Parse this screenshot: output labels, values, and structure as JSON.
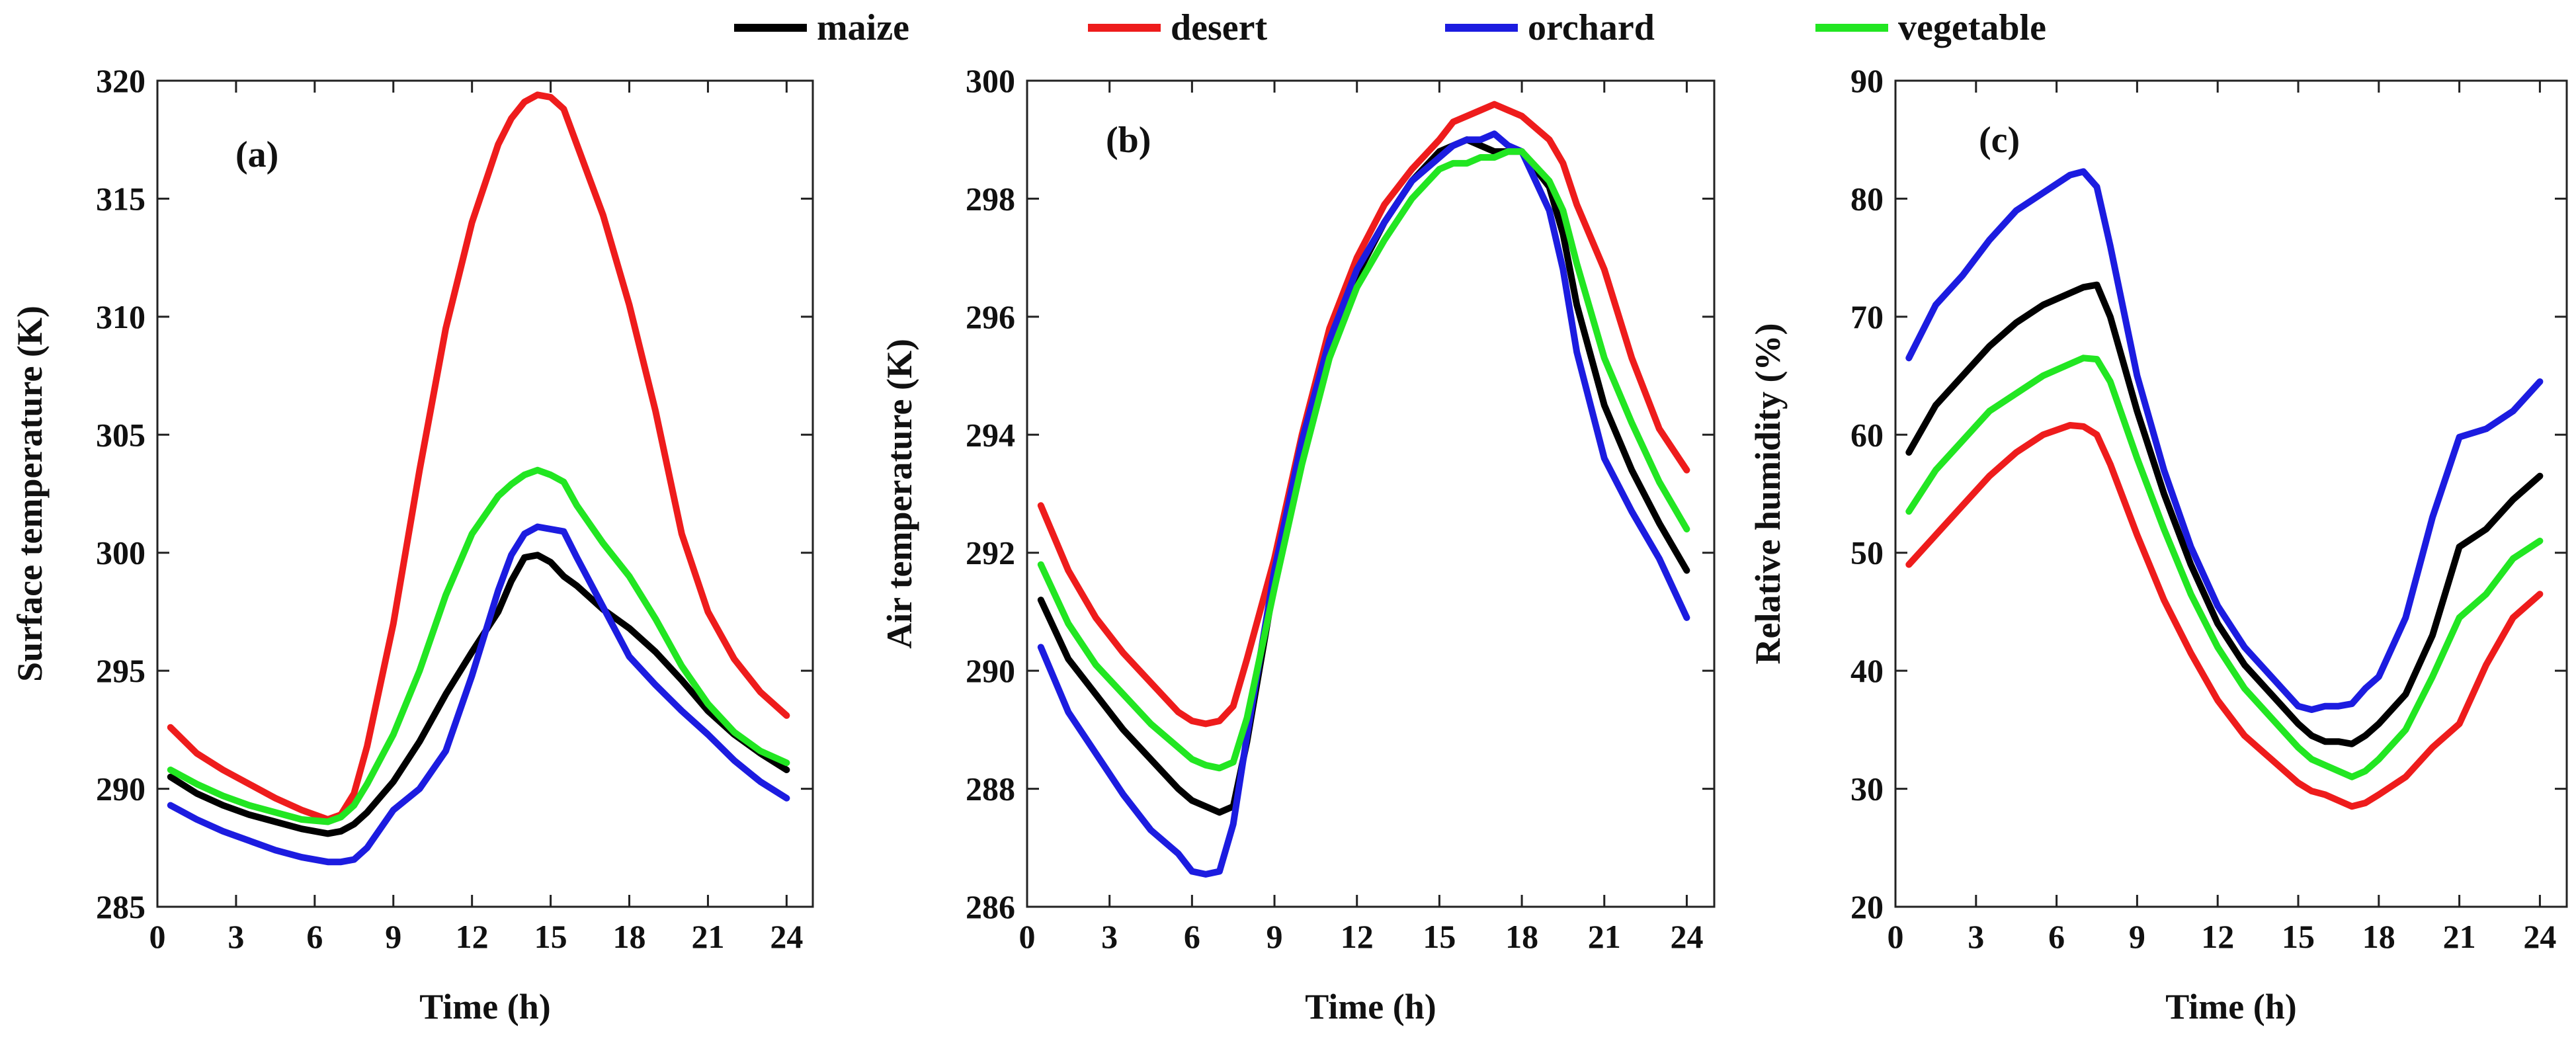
{
  "legend": {
    "entries": [
      {
        "name": "maize",
        "color": "#000000"
      },
      {
        "name": "desert",
        "color": "#ee1c1c"
      },
      {
        "name": "orchard",
        "color": "#1c1ce0"
      },
      {
        "name": "vegetable",
        "color": "#22e622"
      }
    ],
    "placement": "top-center"
  },
  "chart_data": [
    {
      "type": "line",
      "tag": "(a)",
      "xlabel": "Time (h)",
      "ylabel": "Surface temperature (K)",
      "xlim": [
        0,
        25
      ],
      "ylim": [
        285,
        320
      ],
      "xticks": [
        "0",
        "3",
        "6",
        "9",
        "12",
        "15",
        "18",
        "21",
        "24"
      ],
      "yticks": [
        "285",
        "290",
        "295",
        "300",
        "305",
        "310",
        "315",
        "320"
      ],
      "x": [
        0.5,
        1.5,
        2.5,
        3.5,
        4.5,
        5.5,
        6.5,
        7.0,
        7.5,
        8.0,
        9.0,
        10.0,
        11.0,
        12.0,
        13.0,
        13.5,
        14.0,
        14.5,
        15.0,
        15.5,
        16.0,
        17.0,
        18.0,
        19.0,
        20.0,
        21.0,
        22.0,
        23.0,
        24.0
      ],
      "series": [
        {
          "name": "maize",
          "values": [
            290.5,
            289.8,
            289.3,
            288.9,
            288.6,
            288.3,
            288.1,
            288.2,
            288.5,
            289.0,
            290.3,
            292.0,
            294.0,
            295.8,
            297.5,
            298.8,
            299.8,
            299.9,
            299.6,
            299.0,
            298.6,
            297.6,
            296.8,
            295.8,
            294.6,
            293.3,
            292.3,
            291.5,
            290.8
          ]
        },
        {
          "name": "desert",
          "values": [
            292.6,
            291.5,
            290.8,
            290.2,
            289.6,
            289.1,
            288.7,
            288.9,
            289.8,
            291.8,
            297.0,
            303.5,
            309.5,
            314.0,
            317.3,
            318.4,
            319.1,
            319.4,
            319.3,
            318.8,
            317.3,
            314.3,
            310.5,
            306.0,
            300.8,
            297.5,
            295.5,
            294.1,
            293.1
          ]
        },
        {
          "name": "orchard",
          "values": [
            289.3,
            288.7,
            288.2,
            287.8,
            287.4,
            287.1,
            286.9,
            286.9,
            287.0,
            287.5,
            289.1,
            290.0,
            291.6,
            294.8,
            298.4,
            299.9,
            300.8,
            301.1,
            301.0,
            300.9,
            299.8,
            297.7,
            295.6,
            294.4,
            293.3,
            292.3,
            291.2,
            290.3,
            289.6
          ]
        },
        {
          "name": "vegetable",
          "values": [
            290.8,
            290.2,
            289.7,
            289.3,
            289.0,
            288.7,
            288.6,
            288.8,
            289.3,
            290.2,
            292.3,
            295.0,
            298.2,
            300.8,
            302.4,
            302.9,
            303.3,
            303.5,
            303.3,
            303.0,
            302.0,
            300.4,
            299.0,
            297.2,
            295.2,
            293.6,
            292.4,
            291.6,
            291.1
          ]
        }
      ]
    },
    {
      "type": "line",
      "tag": "(b)",
      "xlabel": "Time (h)",
      "ylabel": "Air temperature (K)",
      "xlim": [
        0,
        25
      ],
      "ylim": [
        286,
        300
      ],
      "xticks": [
        "0",
        "3",
        "6",
        "9",
        "12",
        "15",
        "18",
        "21",
        "24"
      ],
      "yticks": [
        "286",
        "288",
        "290",
        "292",
        "294",
        "296",
        "298",
        "300"
      ],
      "x": [
        0.5,
        1.5,
        2.5,
        3.5,
        4.5,
        5.5,
        6.0,
        6.5,
        7.0,
        7.5,
        8.0,
        9.0,
        10.0,
        11.0,
        12.0,
        13.0,
        14.0,
        15.0,
        15.5,
        16.0,
        16.5,
        17.0,
        17.5,
        18.0,
        19.0,
        19.5,
        20.0,
        21.0,
        22.0,
        23.0,
        24.0
      ],
      "series": [
        {
          "name": "maize",
          "values": [
            291.2,
            290.2,
            289.6,
            289.0,
            288.5,
            288.0,
            287.8,
            287.7,
            287.6,
            287.7,
            288.8,
            291.5,
            293.7,
            295.5,
            296.7,
            297.6,
            298.3,
            298.8,
            298.9,
            299.0,
            298.9,
            298.8,
            298.8,
            298.8,
            298.2,
            297.4,
            296.2,
            294.5,
            293.4,
            292.5,
            291.7
          ]
        },
        {
          "name": "desert",
          "values": [
            292.8,
            291.7,
            290.9,
            290.3,
            289.8,
            289.3,
            289.15,
            289.1,
            289.15,
            289.4,
            290.2,
            291.9,
            294.0,
            295.8,
            297.0,
            297.9,
            298.5,
            299.0,
            299.3,
            299.4,
            299.5,
            299.6,
            299.5,
            299.4,
            299.0,
            298.6,
            297.9,
            296.8,
            295.3,
            294.1,
            293.4
          ]
        },
        {
          "name": "orchard",
          "values": [
            290.4,
            289.3,
            288.6,
            287.9,
            287.3,
            286.9,
            286.6,
            286.55,
            286.6,
            287.4,
            288.9,
            291.7,
            293.9,
            295.6,
            296.8,
            297.6,
            298.3,
            298.7,
            298.9,
            299.0,
            299.0,
            299.1,
            298.9,
            298.8,
            297.8,
            296.8,
            295.4,
            293.6,
            292.7,
            291.9,
            290.9
          ]
        },
        {
          "name": "vegetable",
          "values": [
            291.8,
            290.8,
            290.1,
            289.6,
            289.1,
            288.7,
            288.5,
            288.4,
            288.35,
            288.45,
            289.2,
            291.4,
            293.5,
            295.3,
            296.5,
            297.3,
            298.0,
            298.5,
            298.6,
            298.6,
            298.7,
            298.7,
            298.8,
            298.8,
            298.3,
            297.8,
            296.9,
            295.3,
            294.2,
            293.2,
            292.4
          ]
        }
      ]
    },
    {
      "type": "line",
      "tag": "(c)",
      "xlabel": "Time (h)",
      "ylabel": "Relative humidity (%)",
      "xlim": [
        0,
        25
      ],
      "ylim": [
        20,
        90
      ],
      "xticks": [
        "0",
        "3",
        "6",
        "9",
        "12",
        "15",
        "18",
        "21",
        "24"
      ],
      "yticks": [
        "20",
        "30",
        "40",
        "50",
        "60",
        "70",
        "80",
        "90"
      ],
      "x": [
        0.5,
        1.5,
        2.5,
        3.5,
        4.5,
        5.5,
        6.5,
        7.0,
        7.5,
        8.0,
        9.0,
        10.0,
        11.0,
        12.0,
        13.0,
        14.0,
        15.0,
        15.5,
        16.0,
        16.5,
        17.0,
        17.5,
        18.0,
        19.0,
        20.0,
        21.0,
        22.0,
        23.0,
        24.0
      ],
      "series": [
        {
          "name": "maize",
          "values": [
            58.5,
            62.5,
            65.0,
            67.5,
            69.5,
            71.0,
            72.0,
            72.5,
            72.7,
            70.0,
            62.0,
            55.0,
            49.0,
            44.0,
            40.5,
            38.0,
            35.5,
            34.5,
            34.0,
            34.0,
            33.8,
            34.5,
            35.5,
            38.0,
            43.0,
            50.5,
            52.0,
            54.5,
            56.5
          ]
        },
        {
          "name": "desert",
          "values": [
            49.0,
            51.5,
            54.0,
            56.5,
            58.5,
            60.0,
            60.8,
            60.7,
            60.0,
            57.5,
            51.5,
            46.0,
            41.5,
            37.5,
            34.5,
            32.5,
            30.5,
            29.8,
            29.5,
            29.0,
            28.5,
            28.8,
            29.5,
            31.0,
            33.5,
            35.5,
            40.5,
            44.5,
            46.5
          ]
        },
        {
          "name": "orchard",
          "values": [
            66.5,
            71.0,
            73.5,
            76.5,
            79.0,
            80.5,
            82.0,
            82.3,
            81.0,
            76.0,
            65.0,
            57.0,
            50.5,
            45.5,
            42.0,
            39.5,
            37.0,
            36.7,
            37.0,
            37.0,
            37.2,
            38.5,
            39.5,
            44.5,
            53.0,
            59.8,
            60.5,
            62.0,
            64.5
          ]
        },
        {
          "name": "vegetable",
          "values": [
            53.5,
            57.0,
            59.5,
            62.0,
            63.5,
            65.0,
            66.0,
            66.5,
            66.4,
            64.5,
            58.0,
            52.0,
            46.5,
            42.0,
            38.5,
            36.0,
            33.5,
            32.5,
            32.0,
            31.5,
            31.0,
            31.5,
            32.5,
            35.0,
            39.5,
            44.5,
            46.5,
            49.5,
            51.0
          ]
        }
      ]
    }
  ]
}
